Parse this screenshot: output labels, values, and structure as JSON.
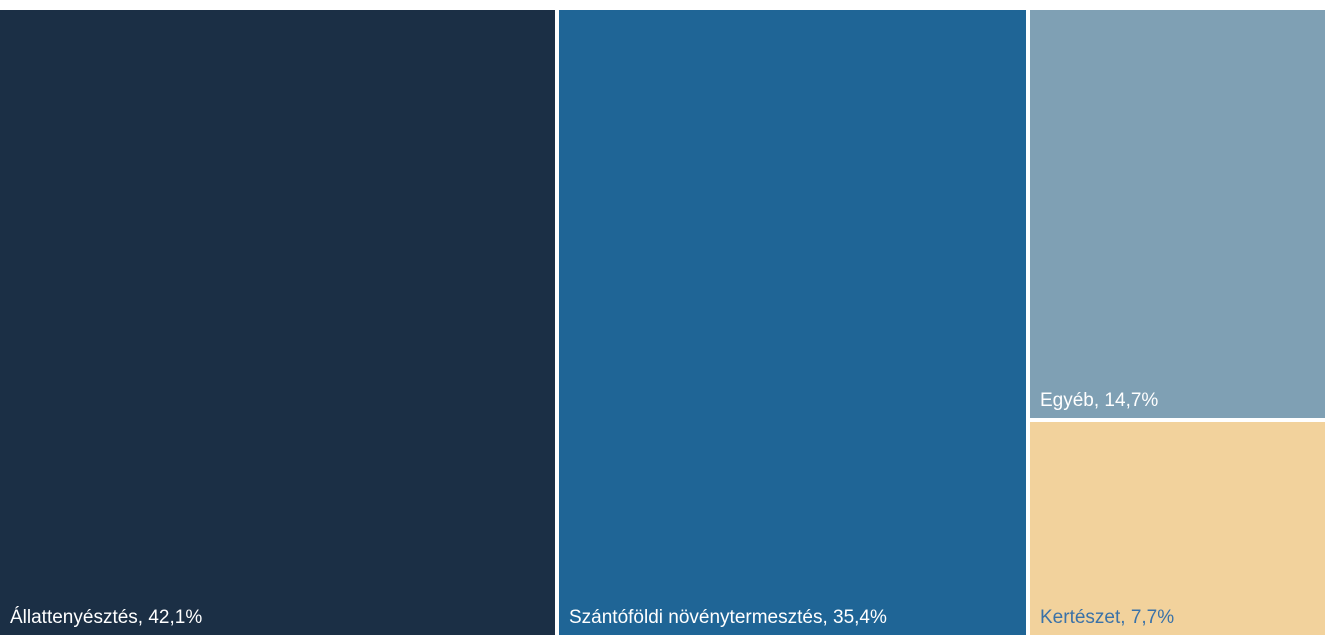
{
  "chart_data": {
    "type": "treemap",
    "title": "",
    "series": [
      {
        "name": "",
        "items": [
          {
            "label": "Állattenyésztés, 42,1%",
            "category": "Állattenyésztés",
            "value": 42.1,
            "color": "#1b2f45",
            "text_color": "#ffffff"
          },
          {
            "label": "Szántóföldi növénytermesztés, 35,4%",
            "category": "Szántóföldi növénytermesztés",
            "value": 35.4,
            "color": "#1f6596",
            "text_color": "#ffffff"
          },
          {
            "label": "Egyéb, 14,7%",
            "category": "Egyéb",
            "value": 14.7,
            "color": "#7fa0b4",
            "text_color": "#ffffff"
          },
          {
            "label": "Kertészet, 7,7%",
            "category": "Kertészet",
            "value": 7.7,
            "color": "#f2d29c",
            "text_color": "#3a72a8"
          }
        ]
      }
    ],
    "value_unit": "%",
    "legend": "none"
  }
}
